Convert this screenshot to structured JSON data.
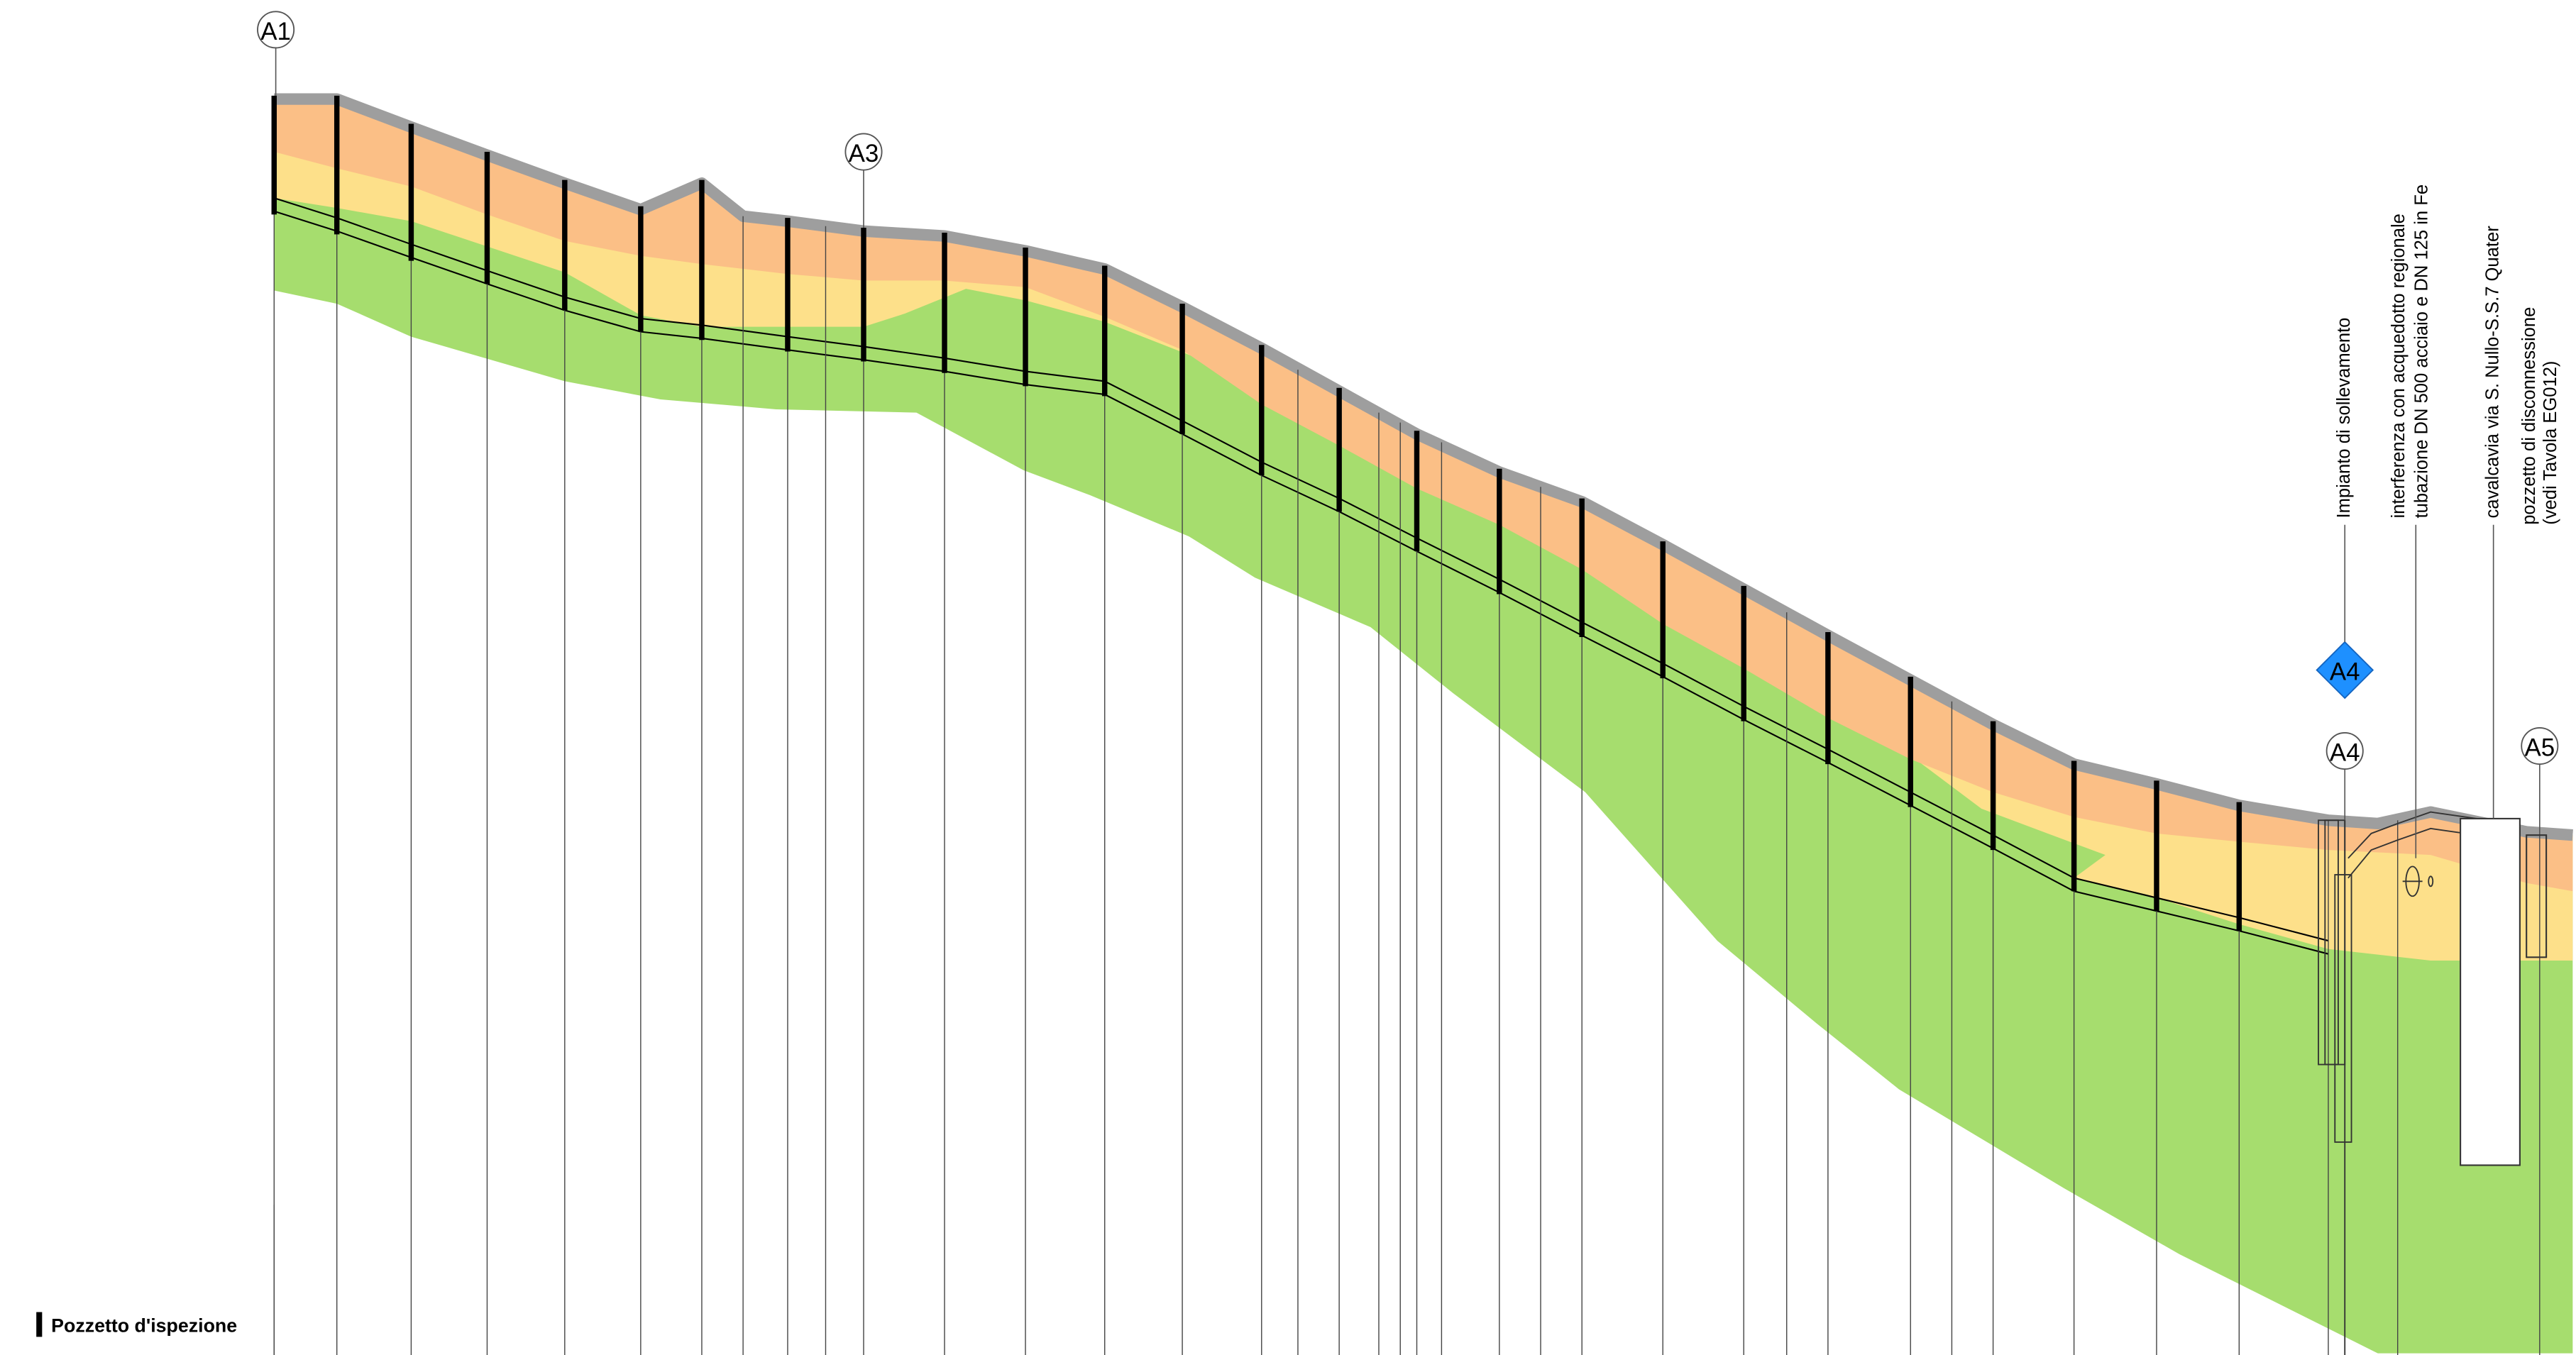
{
  "markers": {
    "a1": "A1",
    "a3": "A3",
    "a4_circle": "A4",
    "a4_diamond": "A4",
    "a5": "A5"
  },
  "annotations": {
    "pumping_station": "Impianto di sollevamento",
    "interference_line1": "interferenza con acquedotto regionale",
    "interference_line2": "tubazione DN 500 acciaio e DN 125 in Fe",
    "overpass": "cavalcavia via S. Nullo-S.S.7 Quater",
    "disconnect_line1": "pozzetto di disconnessione",
    "disconnect_line2": "(vedi Tavola EG012)"
  },
  "legend": {
    "label": "Pozzetto d'ispezione"
  },
  "colors": {
    "road_surface": "#9e9e9e",
    "layer_orange": "#fbbf86",
    "layer_yellow": "#fde08a",
    "layer_green": "#a6dd6e",
    "manhole": "#000000",
    "diamond": "#1e90ff"
  }
}
